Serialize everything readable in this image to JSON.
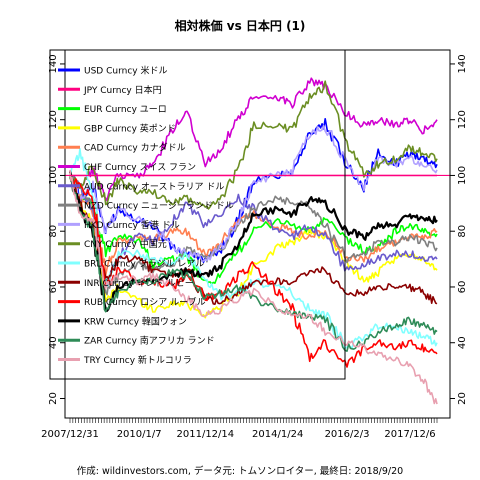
{
  "chart_data": {
    "type": "line",
    "title": "相対株価 vs 日本円 (1)",
    "caption": "作成: wildinvestors.com, データ元: トムソンロイター, 最終日: 2018/9/20",
    "xlabel": "",
    "ylabel": "",
    "x_ticks": [
      "2007/12/31",
      "2010/1/7",
      "2011/12/14",
      "2014/1/24",
      "2016/2/3",
      "2017/12/6"
    ],
    "x": [
      "2007/12/31",
      "2008/4/15",
      "2008/9/1",
      "2009/1/15",
      "2009/6/1",
      "2010/1/7",
      "2010/6/1",
      "2011/1/1",
      "2011/6/1",
      "2011/12/14",
      "2012/6/1",
      "2012/12/1",
      "2013/5/15",
      "2014/1/24",
      "2014/7/1",
      "2015/1/1",
      "2015/6/15",
      "2016/2/3",
      "2016/8/1",
      "2017/1/1",
      "2017/7/1",
      "2017/12/6",
      "2018/5/1",
      "2018/9/20"
    ],
    "ylim": [
      13,
      145
    ],
    "yticks": [
      20,
      40,
      60,
      80,
      100,
      120,
      140
    ],
    "hline": 100,
    "hline_color": "#ff0080",
    "grid": false,
    "legend_position": "top-left",
    "series": [
      {
        "name": "USD Curncy 米ドル",
        "color": "#0000ff",
        "values": [
          100,
          92,
          96,
          80,
          88,
          84,
          82,
          74,
          72,
          70,
          74,
          84,
          98,
          100,
          102,
          115,
          118,
          104,
          96,
          108,
          104,
          108,
          106,
          104
        ]
      },
      {
        "name": "JPY Curncy 日本円",
        "color": "#ff0080",
        "values": [
          100,
          100,
          100,
          100,
          100,
          100,
          100,
          100,
          100,
          100,
          100,
          100,
          100,
          100,
          100,
          100,
          100,
          100,
          100,
          100,
          100,
          100,
          100,
          100
        ]
      },
      {
        "name": "EUR Curncy ユーロ",
        "color": "#00ff00",
        "values": [
          100,
          92,
          90,
          72,
          78,
          77,
          68,
          70,
          71,
          61,
          64,
          73,
          80,
          84,
          82,
          80,
          84,
          77,
          73,
          74,
          80,
          82,
          80,
          79
        ]
      },
      {
        "name": "GBP Curncy 英ポンド",
        "color": "#ffff00",
        "values": [
          100,
          90,
          82,
          55,
          60,
          55,
          52,
          54,
          54,
          50,
          53,
          58,
          68,
          74,
          76,
          80,
          78,
          69,
          62,
          65,
          70,
          72,
          70,
          66
        ]
      },
      {
        "name": "CAD Curncy カナダドル",
        "color": "#ff7f50",
        "values": [
          100,
          92,
          88,
          66,
          76,
          78,
          77,
          80,
          80,
          72,
          76,
          84,
          86,
          82,
          80,
          78,
          80,
          70,
          70,
          74,
          76,
          78,
          78,
          80
        ]
      },
      {
        "name": "CHF Curncy スイス フラン",
        "color": "#d000d0",
        "values": [
          100,
          96,
          102,
          92,
          100,
          100,
          104,
          116,
          124,
          104,
          110,
          120,
          128,
          128,
          126,
          134,
          132,
          122,
          118,
          120,
          118,
          120,
          116,
          120
        ]
      },
      {
        "name": "AUD Curncy オーストラリア ドル",
        "color": "#6a5acd",
        "values": [
          100,
          96,
          88,
          60,
          70,
          80,
          76,
          84,
          90,
          82,
          86,
          92,
          88,
          80,
          78,
          82,
          78,
          66,
          68,
          70,
          72,
          72,
          70,
          70
        ]
      },
      {
        "name": "NZD Curncy ニュージーランド ドル",
        "color": "#808080",
        "values": [
          100,
          96,
          90,
          58,
          64,
          68,
          66,
          68,
          74,
          70,
          74,
          82,
          88,
          92,
          90,
          90,
          82,
          70,
          72,
          76,
          76,
          78,
          76,
          74
        ]
      },
      {
        "name": "HKD Curncy 香港 ドル",
        "color": "#b0a0ff",
        "values": [
          100,
          92,
          96,
          80,
          88,
          84,
          82,
          74,
          72,
          70,
          74,
          84,
          98,
          100,
          102,
          115,
          118,
          104,
          96,
          106,
          104,
          106,
          104,
          102
        ]
      },
      {
        "name": "CNY Curncy 中国元",
        "color": "#6b8e23",
        "values": [
          100,
          96,
          104,
          90,
          98,
          94,
          94,
          90,
          92,
          88,
          92,
          102,
          118,
          118,
          116,
          128,
          132,
          112,
          100,
          104,
          106,
          110,
          108,
          106
        ]
      },
      {
        "name": "BRL Curncy ブラジル レアル",
        "color": "#80ffff",
        "values": [
          100,
          108,
          94,
          60,
          72,
          72,
          70,
          68,
          72,
          62,
          56,
          58,
          62,
          60,
          58,
          52,
          50,
          38,
          42,
          46,
          46,
          44,
          42,
          40
        ]
      },
      {
        "name": "INR Curncy インド ルピー",
        "color": "#8b0000",
        "values": [
          100,
          90,
          82,
          62,
          70,
          70,
          66,
          64,
          66,
          56,
          54,
          58,
          62,
          62,
          62,
          66,
          66,
          58,
          58,
          60,
          60,
          60,
          58,
          54
        ]
      },
      {
        "name": "RUB Curncy ロシア ルーブル",
        "color": "#ff0000",
        "values": [
          100,
          96,
          92,
          60,
          66,
          62,
          62,
          60,
          64,
          56,
          58,
          64,
          68,
          58,
          52,
          34,
          40,
          32,
          38,
          40,
          38,
          40,
          38,
          36
        ]
      },
      {
        "name": "KRW Curncy 韓国ウォン",
        "color": "#000000",
        "values": [
          100,
          88,
          80,
          52,
          60,
          62,
          62,
          64,
          66,
          64,
          68,
          76,
          86,
          88,
          86,
          92,
          90,
          80,
          78,
          82,
          82,
          86,
          84,
          84
        ]
      },
      {
        "name": "ZAR Curncy 南アフリカ ランド",
        "color": "#2e8b57",
        "values": [
          100,
          86,
          80,
          52,
          58,
          62,
          62,
          66,
          64,
          56,
          58,
          60,
          56,
          52,
          50,
          50,
          48,
          38,
          40,
          44,
          46,
          48,
          46,
          44
        ]
      },
      {
        "name": "TRY Curncy 新トルコリラ",
        "color": "#e8a0b0",
        "values": [
          100,
          86,
          84,
          60,
          64,
          62,
          64,
          60,
          56,
          50,
          52,
          56,
          58,
          52,
          50,
          50,
          44,
          40,
          38,
          36,
          34,
          32,
          26,
          18
        ]
      }
    ]
  }
}
